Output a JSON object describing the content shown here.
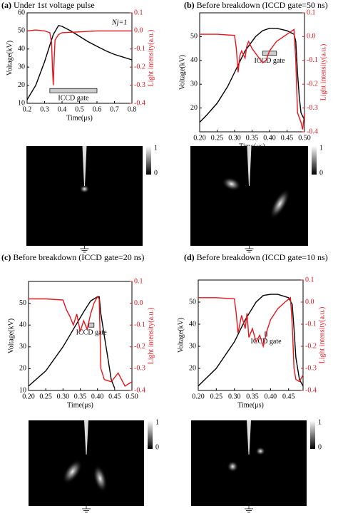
{
  "chart_data": [
    {
      "type": "line",
      "panel": "(a)",
      "title": "Under 1st voltage pulse",
      "annotation": "Nj=1",
      "xlabel": "Time(μs)",
      "ylabel": "Voltage(kV)",
      "y2label": "Light intensity(a.u.)",
      "xlim": [
        0.2,
        0.8
      ],
      "xticks": [
        0.2,
        0.3,
        0.4,
        0.5,
        0.6,
        0.7,
        0.8
      ],
      "ylim": [
        10,
        60
      ],
      "yticks": [
        10,
        20,
        30,
        40,
        50,
        60
      ],
      "y2lim": [
        -0.4,
        0.1
      ],
      "y2ticks": [
        0.1,
        {
          "value": 0,
          "label": "0.0"
        },
        -0.1,
        -0.2,
        -0.3,
        -0.4
      ],
      "gate": {
        "label": "ICCD gate",
        "x": [
          0.33,
          0.6
        ]
      },
      "series": [
        {
          "color": "#000000",
          "x": [
            0.2,
            0.25,
            0.3,
            0.35,
            0.38,
            0.4,
            0.45,
            0.5,
            0.55,
            0.6,
            0.65,
            0.7,
            0.75,
            0.8
          ],
          "values": [
            12,
            20,
            33,
            48,
            53,
            52.5,
            50,
            47,
            44,
            41.5,
            39,
            37,
            35.5,
            34
          ]
        },
        {
          "color": "#e8141c",
          "axis": "y2",
          "x": [
            0.2,
            0.25,
            0.3,
            0.33,
            0.34,
            0.345,
            0.35,
            0.355,
            0.36,
            0.38,
            0.4,
            0.5,
            0.6,
            0.7,
            0.8
          ],
          "values": [
            0,
            0.005,
            0,
            -0.01,
            -0.06,
            -0.2,
            -0.3,
            -0.15,
            -0.05,
            -0.02,
            -0.01,
            -0.005,
            0,
            0,
            0
          ]
        }
      ],
      "colorbar_ticks": [
        1,
        0
      ]
    },
    {
      "type": "line",
      "panel": "(b)",
      "title": "Before breakdown (ICCD gate=50 ns)",
      "xlabel": "Time(μs)",
      "ylabel": "Voltage(kV)",
      "y2label": "Light intensity(a.u.)",
      "xlim": [
        0.2,
        0.5
      ],
      "xticks": [
        {
          "value": 0.2,
          "label": "0.20"
        },
        0.25,
        {
          "value": 0.3,
          "label": "0.30"
        },
        0.35,
        {
          "value": 0.4,
          "label": "0.40"
        },
        0.45,
        {
          "value": 0.5,
          "label": "0.50"
        }
      ],
      "ylim": [
        10,
        60
      ],
      "yticks": [
        20,
        30,
        40,
        50
      ],
      "y2lim": [
        -0.4,
        0.1
      ],
      "y2ticks": [
        0.1,
        {
          "value": 0,
          "label": "0.0"
        },
        -0.1,
        -0.2,
        -0.3,
        -0.4
      ],
      "gate": {
        "label": "ICCD gate",
        "x": [
          0.38,
          0.42
        ]
      },
      "series": [
        {
          "color": "#000000",
          "x": [
            0.2,
            0.22,
            0.25,
            0.28,
            0.3,
            0.33,
            0.36,
            0.38,
            0.4,
            0.42,
            0.45,
            0.47,
            0.475,
            0.48,
            0.485,
            0.49,
            0.5
          ],
          "values": [
            14,
            17,
            22,
            29,
            35,
            44,
            50,
            52.5,
            53.5,
            53.5,
            52.5,
            51,
            48,
            35,
            25,
            18,
            15
          ]
        },
        {
          "color": "#e8141c",
          "axis": "y2",
          "x": [
            0.2,
            0.25,
            0.3,
            0.305,
            0.31,
            0.315,
            0.32,
            0.33,
            0.335,
            0.34,
            0.35,
            0.36,
            0.37,
            0.38,
            0.39,
            0.4,
            0.42,
            0.44,
            0.46,
            0.47,
            0.475,
            0.48,
            0.49,
            0.495,
            0.5
          ],
          "values": [
            0.01,
            0.01,
            0.005,
            -0.05,
            -0.15,
            -0.08,
            -0.06,
            -0.09,
            -0.04,
            -0.02,
            -0.05,
            -0.07,
            -0.09,
            -0.11,
            -0.1,
            -0.06,
            -0.02,
            0,
            0.02,
            0.03,
            -0.1,
            -0.32,
            -0.36,
            -0.39,
            -0.32
          ]
        }
      ],
      "colorbar_ticks": [
        1,
        0
      ]
    },
    {
      "type": "line",
      "panel": "(c)",
      "title": "Before breakdown (ICCD gate=20 ns)",
      "xlabel": "Time(μs)",
      "ylabel": "Voltage(kV)",
      "y2label": "Light intensity(a.u.)",
      "xlim": [
        0.2,
        0.5
      ],
      "xticks": [
        {
          "value": 0.2,
          "label": "0.20"
        },
        0.25,
        {
          "value": 0.3,
          "label": "0.30"
        },
        0.35,
        {
          "value": 0.4,
          "label": "0.40"
        },
        0.45,
        {
          "value": 0.5,
          "label": "0.50"
        }
      ],
      "ylim": [
        10,
        60
      ],
      "yticks": [
        10,
        20,
        30,
        40,
        50
      ],
      "y2lim": [
        -0.4,
        0.1
      ],
      "y2ticks": [
        0.1,
        {
          "value": 0,
          "label": "0.0"
        },
        -0.1,
        -0.2,
        -0.3,
        -0.4
      ],
      "gate": {
        "label": "ICCD gate",
        "x": [
          0.375,
          0.39
        ]
      },
      "series": [
        {
          "color": "#000000",
          "x": [
            0.2,
            0.25,
            0.3,
            0.33,
            0.36,
            0.38,
            0.4,
            0.405,
            0.41,
            0.42,
            0.43,
            0.44,
            0.45
          ],
          "values": [
            12,
            19,
            30,
            38,
            46,
            51,
            53,
            53,
            45,
            35,
            25,
            15,
            11
          ]
        },
        {
          "color": "#e8141c",
          "axis": "y2",
          "x": [
            0.2,
            0.25,
            0.3,
            0.31,
            0.32,
            0.33,
            0.34,
            0.35,
            0.36,
            0.37,
            0.38,
            0.39,
            0.4,
            0.405,
            0.41,
            0.42,
            0.44,
            0.46,
            0.48,
            0.5
          ],
          "values": [
            0.02,
            0.02,
            0.015,
            -0.03,
            -0.06,
            -0.1,
            -0.05,
            -0.13,
            -0.08,
            -0.12,
            -0.05,
            0,
            0.03,
            0.02,
            -0.3,
            -0.35,
            -0.36,
            -0.32,
            -0.38,
            -0.36
          ]
        }
      ],
      "colorbar_ticks": [
        1,
        0
      ]
    },
    {
      "type": "line",
      "panel": "(d)",
      "title": "Before breakdown (ICCD gate=10 ns)",
      "xlabel": "Time(μs)",
      "ylabel": "Voltage(kV)",
      "y2label": "Light intensity(a.u.)",
      "xlim": [
        0.2,
        0.49
      ],
      "xticks": [
        {
          "value": 0.2,
          "label": "0.20"
        },
        0.25,
        {
          "value": 0.3,
          "label": "0.30"
        },
        0.35,
        {
          "value": 0.4,
          "label": "0.40"
        },
        0.45
      ],
      "ylim": [
        10,
        60
      ],
      "yticks": [
        20,
        30,
        40,
        50
      ],
      "y2lim": [
        -0.4,
        0.1
      ],
      "y2ticks": [
        0.1,
        {
          "value": 0,
          "label": "0.0"
        },
        -0.1,
        -0.2,
        -0.3,
        -0.4
      ],
      "gate": {
        "label": "ICCD gate",
        "x": [
          0.385,
          0.39
        ]
      },
      "series": [
        {
          "color": "#000000",
          "x": [
            0.2,
            0.25,
            0.3,
            0.33,
            0.36,
            0.38,
            0.4,
            0.42,
            0.45,
            0.46,
            0.465,
            0.47,
            0.48,
            0.49
          ],
          "values": [
            12,
            20,
            32,
            42,
            50,
            53,
            53.5,
            53.5,
            52,
            49,
            38,
            25,
            15,
            12
          ]
        },
        {
          "color": "#e8141c",
          "axis": "y2",
          "x": [
            0.2,
            0.25,
            0.3,
            0.305,
            0.31,
            0.32,
            0.33,
            0.335,
            0.34,
            0.35,
            0.36,
            0.37,
            0.38,
            0.39,
            0.4,
            0.42,
            0.44,
            0.455,
            0.46,
            0.465,
            0.47,
            0.48,
            0.49
          ],
          "values": [
            0.02,
            0.02,
            0.015,
            -0.05,
            -0.14,
            -0.06,
            -0.12,
            -0.05,
            -0.16,
            -0.12,
            -0.18,
            -0.15,
            -0.2,
            -0.13,
            -0.08,
            -0.03,
            0,
            0.02,
            -0.1,
            -0.3,
            -0.35,
            -0.36,
            -0.33
          ]
        }
      ],
      "colorbar_ticks": [
        1,
        0
      ]
    }
  ]
}
